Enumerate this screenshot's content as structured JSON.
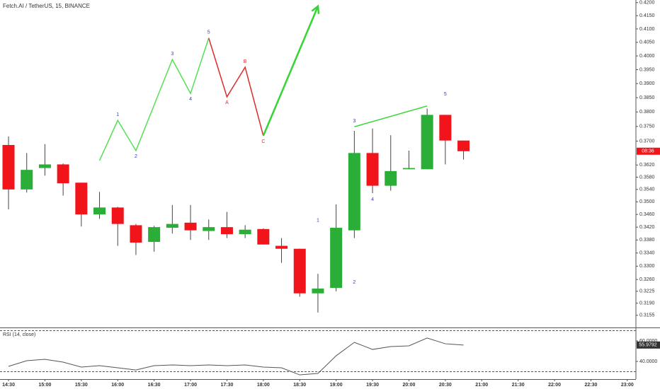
{
  "chart_data": {
    "type": "candlestick",
    "title": "Fetch.AI / TetherUS, 15, BINANCE",
    "log_scale": true,
    "grid": false,
    "up_color": "#2aae37",
    "down_color": "#f2141b",
    "x": [
      14.5,
      14.75,
      15,
      15.25,
      15.5,
      15.75,
      16,
      16.25,
      16.5,
      16.75,
      17,
      17.25,
      17.5,
      17.75,
      18,
      18.25,
      18.5,
      18.75,
      19,
      19.25,
      19.5,
      19.75,
      20,
      20.25,
      20.5,
      20.75
    ],
    "open": [
      0.3687,
      0.354,
      0.361,
      0.3622,
      0.3562,
      0.346,
      0.3482,
      0.3426,
      0.3374,
      0.3418,
      0.3434,
      0.3408,
      0.342,
      0.3398,
      0.3414,
      0.3362,
      0.3353,
      0.3219,
      0.3235,
      0.341,
      0.366,
      0.3552,
      0.3606,
      0.3606,
      0.379,
      0.3702
    ],
    "high": [
      0.3716,
      0.366,
      0.369,
      0.3625,
      0.3562,
      0.3532,
      0.3484,
      0.343,
      0.3424,
      0.349,
      0.349,
      0.3444,
      0.3468,
      0.3426,
      0.3416,
      0.3386,
      0.3353,
      0.3277,
      0.3492,
      0.3735,
      0.3743,
      0.372,
      0.3668,
      0.3812,
      0.379,
      0.3702
    ],
    "low": [
      0.3476,
      0.353,
      0.3585,
      0.352,
      0.3422,
      0.3446,
      0.3362,
      0.3334,
      0.3344,
      0.34,
      0.338,
      0.338,
      0.3386,
      0.3386,
      0.3366,
      0.331,
      0.3209,
      0.3163,
      0.3225,
      0.3386,
      0.3528,
      0.3536,
      0.3606,
      0.3606,
      0.3622,
      0.3638
    ],
    "close": [
      0.354,
      0.3604,
      0.3622,
      0.356,
      0.346,
      0.3482,
      0.343,
      0.3372,
      0.342,
      0.343,
      0.341,
      0.342,
      0.3398,
      0.3412,
      0.3366,
      0.3353,
      0.3219,
      0.3233,
      0.3418,
      0.366,
      0.3552,
      0.36,
      0.361,
      0.379,
      0.3702,
      0.3666
    ],
    "xlim": [
      14.383,
      23.118
    ],
    "xticks": [
      {
        "value": 14.5,
        "label": "14:30"
      },
      {
        "value": 15,
        "label": "15:00"
      },
      {
        "value": 15.5,
        "label": "15:30"
      },
      {
        "value": 16,
        "label": "16:00"
      },
      {
        "value": 16.5,
        "label": "16:30"
      },
      {
        "value": 17,
        "label": "17:00"
      },
      {
        "value": 17.5,
        "label": "17:30"
      },
      {
        "value": 18,
        "label": "18:00"
      },
      {
        "value": 18.5,
        "label": "18:30"
      },
      {
        "value": 19,
        "label": "19:00"
      },
      {
        "value": 19.5,
        "label": "19:30"
      },
      {
        "value": 20,
        "label": "20:00"
      },
      {
        "value": 20.5,
        "label": "20:30"
      },
      {
        "value": 21,
        "label": "21:00"
      },
      {
        "value": 21.5,
        "label": "21:30"
      },
      {
        "value": 22,
        "label": "22:00"
      },
      {
        "value": 22.5,
        "label": "22:30"
      },
      {
        "value": 23,
        "label": "23:00"
      }
    ],
    "ylim": [
      0.312,
      0.421
    ],
    "yticks": [
      {
        "value": 0.42,
        "label": "0.4200"
      },
      {
        "value": 0.415,
        "label": "0.4150"
      },
      {
        "value": 0.41,
        "label": "0.4100"
      },
      {
        "value": 0.405,
        "label": "0.4050"
      },
      {
        "value": 0.4,
        "label": "0.4000"
      },
      {
        "value": 0.395,
        "label": "0.3950"
      },
      {
        "value": 0.39,
        "label": "0.3900"
      },
      {
        "value": 0.385,
        "label": "0.3850"
      },
      {
        "value": 0.38,
        "label": "0.3800"
      },
      {
        "value": 0.375,
        "label": "0.3750"
      },
      {
        "value": 0.37,
        "label": "0.3700"
      },
      {
        "value": 0.362,
        "label": "0.3620"
      },
      {
        "value": 0.358,
        "label": "0.3580"
      },
      {
        "value": 0.354,
        "label": "0.3540"
      },
      {
        "value": 0.35,
        "label": "0.3500"
      },
      {
        "value": 0.346,
        "label": "0.3460"
      },
      {
        "value": 0.342,
        "label": "0.3420"
      },
      {
        "value": 0.338,
        "label": "0.3380"
      },
      {
        "value": 0.334,
        "label": "0.3340"
      },
      {
        "value": 0.33,
        "label": "0.3300"
      },
      {
        "value": 0.326,
        "label": "0.3260"
      },
      {
        "value": 0.3225,
        "label": "0.3225"
      },
      {
        "value": 0.319,
        "label": "0.3190"
      },
      {
        "value": 0.3155,
        "label": "0.3155"
      }
    ],
    "countdown": "08:36",
    "waves": [
      {
        "color": "#55e055",
        "label_color": "#3c3cb0",
        "points": [
          {
            "x": 15.75,
            "price": 0.3635
          },
          {
            "x": 16,
            "price": 0.3771,
            "label": "1"
          },
          {
            "x": 16.25,
            "price": 0.3668,
            "label": "2"
          },
          {
            "x": 16.75,
            "price": 0.3987,
            "label": "3"
          },
          {
            "x": 17,
            "price": 0.3865,
            "label": "4"
          },
          {
            "x": 17.25,
            "price": 0.4066,
            "label": "5"
          }
        ]
      },
      {
        "color": "#e02a2a",
        "label_color": "#e02a2a",
        "points": [
          {
            "x": 17.25,
            "price": 0.4066
          },
          {
            "x": 17.5,
            "price": 0.3853,
            "label": "A"
          },
          {
            "x": 17.75,
            "price": 0.3959,
            "label": "B"
          },
          {
            "x": 18,
            "price": 0.3718,
            "label": "C"
          }
        ]
      },
      {
        "color": "#33d633",
        "arrow": true,
        "points": [
          {
            "x": 18,
            "price": 0.3718
          },
          {
            "x": 18.75,
            "price": 0.4186
          }
        ]
      },
      {
        "color": "#33d633",
        "points": [
          {
            "x": 19.25,
            "price": 0.3749
          },
          {
            "x": 20.25,
            "price": 0.3821
          }
        ]
      }
    ],
    "annotations": {
      "color": "#3c3cb0",
      "labels": [
        {
          "text": "1",
          "x": 18.75,
          "price": 0.3441
        },
        {
          "text": "2",
          "x": 19.25,
          "price": 0.3252
        },
        {
          "text": "3",
          "x": 19.25,
          "price": 0.3769
        },
        {
          "text": "4",
          "x": 19.5,
          "price": 0.3507
        },
        {
          "text": "5",
          "x": 20.5,
          "price": 0.3863
        }
      ]
    },
    "rsi": {
      "title": "RSI (14, close)",
      "color": "#555555",
      "values": [
        35.2,
        40.7,
        42.1,
        39.3,
        34.5,
        35.9,
        33.8,
        31.7,
        35.9,
        36.6,
        35.9,
        36.6,
        35.9,
        36.6,
        34.5,
        33.8,
        26.9,
        28.3,
        45.5,
        58.6,
        51.7,
        54.5,
        55.2,
        62.8,
        57.2,
        55.9792
      ],
      "ylim": [
        22.8,
        72.4
      ],
      "yticks": [
        {
          "value": 40,
          "label": "40.0000"
        },
        {
          "value": 60,
          "label": "60.0000"
        }
      ],
      "bands": [
        30,
        70
      ]
    }
  }
}
